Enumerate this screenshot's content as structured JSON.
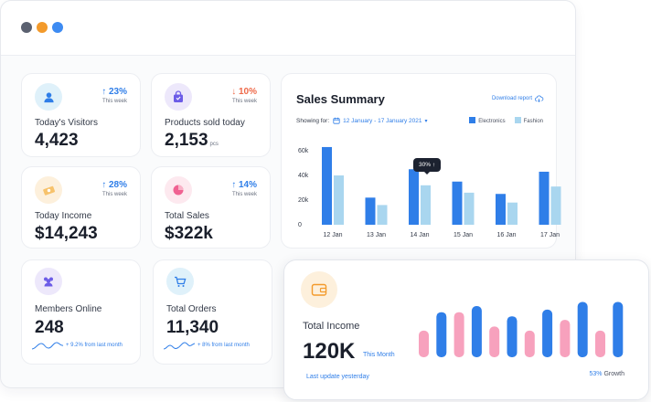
{
  "window": {
    "controls": [
      "close",
      "minimize",
      "maximize"
    ]
  },
  "stats": [
    {
      "id": "visitors",
      "label": "Today's Visitors",
      "value": "4,423",
      "unit": "",
      "trend": "23%",
      "trend_dir": "up",
      "trend_sub": "This week",
      "icon": "user-icon",
      "icon_bg": "#dff1fa",
      "icon_color": "#2f7ee8"
    },
    {
      "id": "products",
      "label": "Products sold today",
      "value": "2,153",
      "unit": "pcs",
      "trend": "10%",
      "trend_dir": "down",
      "trend_sub": "This week",
      "icon": "shopping-bag-icon",
      "icon_bg": "#ede8fb",
      "icon_color": "#6c5ce7"
    },
    {
      "id": "income",
      "label": "Today Income",
      "value": "$14,243",
      "unit": "",
      "trend": "28%",
      "trend_dir": "up",
      "trend_sub": "This week",
      "icon": "money-icon",
      "icon_bg": "#fdf0dc",
      "icon_color": "#f39a2b"
    },
    {
      "id": "sales",
      "label": "Total Sales",
      "value": "$322k",
      "unit": "",
      "trend": "14%",
      "trend_dir": "up",
      "trend_sub": "This week",
      "icon": "pie-chart-icon",
      "icon_bg": "#fde9ef",
      "icon_color": "#f06292"
    },
    {
      "id": "members",
      "label": "Members Online",
      "value": "248",
      "unit": "",
      "footnote": "+ 9.2% from last month",
      "icon": "users-icon",
      "icon_bg": "#ede8fb",
      "icon_color": "#6c5ce7"
    },
    {
      "id": "orders",
      "label": "Total Orders",
      "value": "11,340",
      "unit": "",
      "footnote": "+ 8% from last month",
      "icon": "cart-icon",
      "icon_bg": "#dff1fa",
      "icon_color": "#2f7ee8"
    }
  ],
  "sales_summary": {
    "title": "Sales Summary",
    "download_label": "Download report",
    "showing_label": "Showing for:",
    "date_range": "12 January - 17 January 2021",
    "tooltip": "30% ↑",
    "colors": {
      "electronics": "#2f7ee8",
      "fashion": "#a9d6ef"
    }
  },
  "chart_data": {
    "type": "bar",
    "categories": [
      "12 Jan",
      "13 Jan",
      "14 Jan",
      "15 Jan",
      "16 Jan",
      "17 Jan"
    ],
    "series": [
      {
        "name": "Electronics",
        "values": [
          63000,
          22000,
          45000,
          35000,
          25000,
          43000
        ]
      },
      {
        "name": "Fashion",
        "values": [
          40000,
          16000,
          32000,
          26000,
          18000,
          31000
        ]
      }
    ],
    "yticks": [
      "60k",
      "40k",
      "20k",
      "0"
    ],
    "ylim": [
      0,
      60000
    ],
    "legend_position": "top-right",
    "grid": false
  },
  "total_income": {
    "label": "Total Income",
    "value": "120K",
    "period": "This Month",
    "update": "Last update yesterday",
    "growth_pct": "53%",
    "growth_label": "Growth",
    "colors": {
      "pink": "#f7a1bd",
      "blue": "#2f7ee8"
    },
    "bars": [
      {
        "color": "pink",
        "level": 0.52
      },
      {
        "color": "blue",
        "level": 0.88
      },
      {
        "color": "pink",
        "level": 0.88
      },
      {
        "color": "blue",
        "level": 1.0
      },
      {
        "color": "pink",
        "level": 0.6
      },
      {
        "color": "blue",
        "level": 0.8
      },
      {
        "color": "pink",
        "level": 0.52
      },
      {
        "color": "blue",
        "level": 0.93
      },
      {
        "color": "pink",
        "level": 0.73
      },
      {
        "color": "blue",
        "level": 1.08
      },
      {
        "color": "pink",
        "level": 0.52
      },
      {
        "color": "blue",
        "level": 1.08
      }
    ]
  }
}
